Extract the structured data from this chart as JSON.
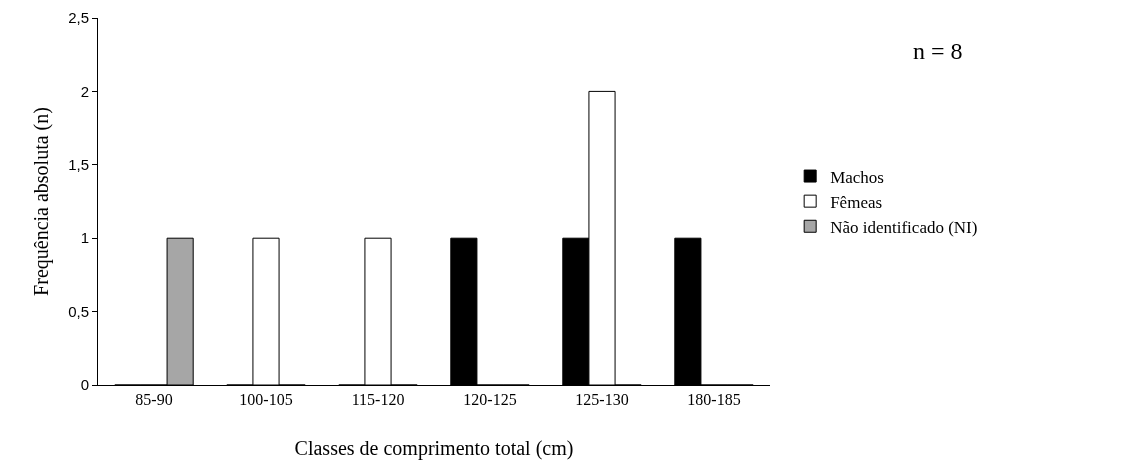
{
  "chart_data": {
    "type": "bar",
    "xlabel": "Classes de comprimento total (cm)",
    "ylabel": "Frequência absoluta (n)",
    "categories": [
      "85-90",
      "100-105",
      "115-120",
      "120-125",
      "125-130",
      "180-185"
    ],
    "series": [
      {
        "name": "Machos",
        "color": "#000000",
        "values": [
          0,
          0,
          0,
          1,
          1,
          1
        ]
      },
      {
        "name": "Fêmeas",
        "color": "#ffffff",
        "values": [
          0,
          1,
          1,
          0,
          2,
          0
        ]
      },
      {
        "name": "Não identificado (NI)",
        "color": "#a6a6a6",
        "values": [
          1,
          0,
          0,
          0,
          0,
          0
        ]
      }
    ],
    "ylim": [
      0,
      2.5
    ],
    "yticks": [
      0,
      {
        "value": 0.5,
        "label": "0,5"
      },
      1,
      {
        "value": 1.5,
        "label": "1,5"
      },
      2,
      {
        "value": 2.5,
        "label": "2,5"
      }
    ],
    "grid": false,
    "legend": "right",
    "annotations": [
      "n = 8"
    ]
  }
}
